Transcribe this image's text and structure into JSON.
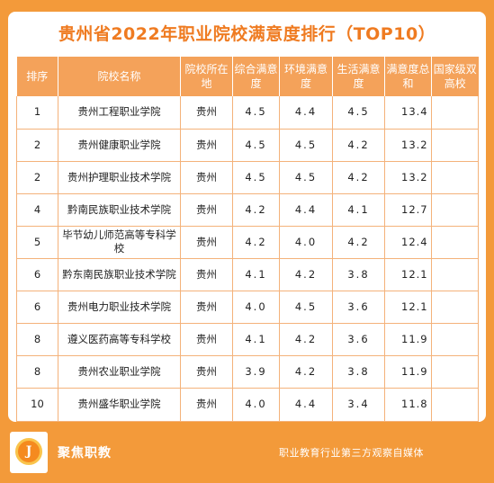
{
  "title": "贵州省2022年职业院校满意度排行（TOP10）",
  "headers": {
    "rank": "排序",
    "school": "院校名称",
    "location": "院校所在地",
    "overall": "综合满意度",
    "environment": "环境满意度",
    "life": "生活满意度",
    "total": "满意度总和",
    "national": "国家级双高校"
  },
  "rows": [
    {
      "rank": "1",
      "school": "贵州工程职业学院",
      "location": "贵州",
      "overall": "4.5",
      "environment": "4.4",
      "life": "4.5",
      "total": "13.4",
      "national": ""
    },
    {
      "rank": "2",
      "school": "贵州健康职业学院",
      "location": "贵州",
      "overall": "4.5",
      "environment": "4.5",
      "life": "4.2",
      "total": "13.2",
      "national": ""
    },
    {
      "rank": "2",
      "school": "贵州护理职业技术学院",
      "location": "贵州",
      "overall": "4.5",
      "environment": "4.5",
      "life": "4.2",
      "total": "13.2",
      "national": ""
    },
    {
      "rank": "4",
      "school": "黔南民族职业技术学院",
      "location": "贵州",
      "overall": "4.2",
      "environment": "4.4",
      "life": "4.1",
      "total": "12.7",
      "national": ""
    },
    {
      "rank": "5",
      "school": "毕节幼儿师范高等专科学校",
      "location": "贵州",
      "overall": "4.2",
      "environment": "4.0",
      "life": "4.2",
      "total": "12.4",
      "national": ""
    },
    {
      "rank": "6",
      "school": "黔东南民族职业技术学院",
      "location": "贵州",
      "overall": "4.1",
      "environment": "4.2",
      "life": "3.8",
      "total": "12.1",
      "national": ""
    },
    {
      "rank": "6",
      "school": "贵州电力职业技术学院",
      "location": "贵州",
      "overall": "4.0",
      "environment": "4.5",
      "life": "3.6",
      "total": "12.1",
      "national": ""
    },
    {
      "rank": "8",
      "school": "遵义医药高等专科学校",
      "location": "贵州",
      "overall": "4.1",
      "environment": "4.2",
      "life": "3.6",
      "total": "11.9",
      "national": ""
    },
    {
      "rank": "8",
      "school": "贵州农业职业学院",
      "location": "贵州",
      "overall": "3.9",
      "environment": "4.2",
      "life": "3.8",
      "total": "11.9",
      "national": ""
    },
    {
      "rank": "10",
      "school": "贵州盛华职业学院",
      "location": "贵州",
      "overall": "4.0",
      "environment": "4.4",
      "life": "3.4",
      "total": "11.8",
      "national": ""
    }
  ],
  "footer": {
    "logo_letter": "J",
    "brand": "聚焦职教",
    "slogan": "职业教育行业第三方观察自媒体"
  },
  "colors": {
    "background": "#f39a3a",
    "header_fill": "#f4a25a",
    "title": "#ef7b21",
    "grid": "#f4b27a"
  }
}
